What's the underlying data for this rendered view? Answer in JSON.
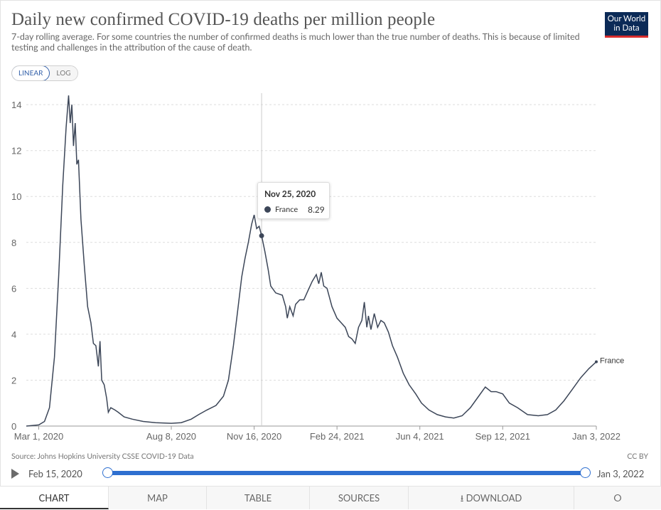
{
  "header": {
    "title": "Daily new confirmed COVID-19 deaths per million people",
    "subtitle": "7-day rolling average. For some countries the number of confirmed deaths is much lower than the true number of deaths. This is because of limited testing and challenges in the attribution of the cause of death.",
    "logo_line1": "Our World",
    "logo_line2": "in Data"
  },
  "scale_toggle": {
    "linear": "LINEAR",
    "log": "LOG",
    "selected": "LINEAR"
  },
  "tooltip": {
    "date": "Nov 25, 2020",
    "series": "France",
    "value": "8.29"
  },
  "footer": {
    "source": "Source: Johns Hopkins University CSSE COVID-19 Data",
    "license": "CC BY"
  },
  "timeline": {
    "start": "Feb 15, 2020",
    "end": "Jan 3, 2022"
  },
  "tabs": [
    {
      "label": "CHART",
      "active": true
    },
    {
      "label": "MAP"
    },
    {
      "label": "TABLE"
    },
    {
      "label": "SOURCES"
    },
    {
      "label": "DOWNLOAD",
      "icon": "download-icon"
    },
    {
      "label": "",
      "icon": "share-icon"
    }
  ],
  "colors": {
    "series": "#3c4658",
    "accent": "#2e6fd0",
    "logo_bg": "#0b2a57",
    "logo_bar": "#d72c2c"
  },
  "chart_data": {
    "type": "line",
    "ylim": [
      0,
      14.5
    ],
    "y_ticks": [
      0,
      2,
      4,
      6,
      8,
      10,
      12,
      14
    ],
    "x_tick_labels": [
      "Mar 1, 2020",
      "Aug 8, 2020",
      "Nov 16, 2020",
      "Feb 24, 2021",
      "Jun 4, 2021",
      "Sep 12, 2021",
      "Jan 3, 2022"
    ],
    "x_ticks": [
      "2020-03-01",
      "2020-08-08",
      "2020-11-16",
      "2021-02-24",
      "2021-06-04",
      "2021-09-12",
      "2022-01-03"
    ],
    "x_range": [
      "2020-02-15",
      "2022-01-03"
    ],
    "highlight_date": "2020-11-25",
    "series": [
      {
        "name": "France",
        "points": [
          [
            "2020-02-15",
            0
          ],
          [
            "2020-03-01",
            0.05
          ],
          [
            "2020-03-08",
            0.2
          ],
          [
            "2020-03-14",
            0.8
          ],
          [
            "2020-03-20",
            3.0
          ],
          [
            "2020-03-25",
            6.5
          ],
          [
            "2020-03-30",
            10.5
          ],
          [
            "2020-04-03",
            13.0
          ],
          [
            "2020-04-06",
            14.4
          ],
          [
            "2020-04-08",
            13.2
          ],
          [
            "2020-04-10",
            14.0
          ],
          [
            "2020-04-12",
            12.2
          ],
          [
            "2020-04-14",
            13.2
          ],
          [
            "2020-04-16",
            11.4
          ],
          [
            "2020-04-18",
            11.6
          ],
          [
            "2020-04-21",
            9.0
          ],
          [
            "2020-04-25",
            7.0
          ],
          [
            "2020-04-29",
            5.2
          ],
          [
            "2020-05-03",
            4.5
          ],
          [
            "2020-05-06",
            3.6
          ],
          [
            "2020-05-09",
            3.5
          ],
          [
            "2020-05-12",
            2.6
          ],
          [
            "2020-05-14",
            3.7
          ],
          [
            "2020-05-16",
            2.0
          ],
          [
            "2020-05-19",
            1.8
          ],
          [
            "2020-05-22",
            1.2
          ],
          [
            "2020-05-24",
            0.6
          ],
          [
            "2020-05-27",
            0.8
          ],
          [
            "2020-06-01",
            0.7
          ],
          [
            "2020-06-05",
            0.6
          ],
          [
            "2020-06-12",
            0.4
          ],
          [
            "2020-06-22",
            0.3
          ],
          [
            "2020-07-05",
            0.2
          ],
          [
            "2020-07-20",
            0.15
          ],
          [
            "2020-08-08",
            0.12
          ],
          [
            "2020-08-20",
            0.15
          ],
          [
            "2020-09-01",
            0.3
          ],
          [
            "2020-09-10",
            0.5
          ],
          [
            "2020-09-20",
            0.7
          ],
          [
            "2020-10-01",
            0.9
          ],
          [
            "2020-10-10",
            1.3
          ],
          [
            "2020-10-16",
            2.0
          ],
          [
            "2020-10-22",
            3.5
          ],
          [
            "2020-10-27",
            5.0
          ],
          [
            "2020-11-01",
            6.5
          ],
          [
            "2020-11-05",
            7.3
          ],
          [
            "2020-11-09",
            8.0
          ],
          [
            "2020-11-13",
            8.8
          ],
          [
            "2020-11-16",
            9.2
          ],
          [
            "2020-11-19",
            8.6
          ],
          [
            "2020-11-22",
            8.7
          ],
          [
            "2020-11-25",
            8.29
          ],
          [
            "2020-11-29",
            7.6
          ],
          [
            "2020-12-03",
            6.8
          ],
          [
            "2020-12-06",
            6.1
          ],
          [
            "2020-12-12",
            5.8
          ],
          [
            "2020-12-20",
            5.7
          ],
          [
            "2020-12-24",
            5.2
          ],
          [
            "2020-12-26",
            4.7
          ],
          [
            "2020-12-29",
            5.2
          ],
          [
            "2021-01-02",
            4.8
          ],
          [
            "2021-01-05",
            5.3
          ],
          [
            "2021-01-10",
            5.5
          ],
          [
            "2021-01-15",
            5.5
          ],
          [
            "2021-01-20",
            5.9
          ],
          [
            "2021-01-25",
            6.3
          ],
          [
            "2021-01-30",
            6.6
          ],
          [
            "2021-02-02",
            6.2
          ],
          [
            "2021-02-05",
            6.7
          ],
          [
            "2021-02-08",
            6.1
          ],
          [
            "2021-02-12",
            6.0
          ],
          [
            "2021-02-18",
            5.2
          ],
          [
            "2021-02-24",
            4.7
          ],
          [
            "2021-03-01",
            4.5
          ],
          [
            "2021-03-06",
            4.3
          ],
          [
            "2021-03-10",
            3.9
          ],
          [
            "2021-03-14",
            3.8
          ],
          [
            "2021-03-18",
            3.6
          ],
          [
            "2021-03-22",
            4.3
          ],
          [
            "2021-03-26",
            4.6
          ],
          [
            "2021-03-29",
            5.4
          ],
          [
            "2021-04-01",
            4.3
          ],
          [
            "2021-04-03",
            4.8
          ],
          [
            "2021-04-06",
            4.2
          ],
          [
            "2021-04-10",
            4.9
          ],
          [
            "2021-04-14",
            4.3
          ],
          [
            "2021-04-18",
            4.6
          ],
          [
            "2021-04-22",
            4.5
          ],
          [
            "2021-04-27",
            4.1
          ],
          [
            "2021-05-02",
            3.5
          ],
          [
            "2021-05-08",
            3.0
          ],
          [
            "2021-05-15",
            2.3
          ],
          [
            "2021-05-22",
            1.8
          ],
          [
            "2021-05-30",
            1.4
          ],
          [
            "2021-06-06",
            1.0
          ],
          [
            "2021-06-15",
            0.7
          ],
          [
            "2021-06-25",
            0.5
          ],
          [
            "2021-07-05",
            0.4
          ],
          [
            "2021-07-15",
            0.35
          ],
          [
            "2021-07-25",
            0.45
          ],
          [
            "2021-08-04",
            0.8
          ],
          [
            "2021-08-14",
            1.3
          ],
          [
            "2021-08-22",
            1.7
          ],
          [
            "2021-08-29",
            1.5
          ],
          [
            "2021-09-04",
            1.5
          ],
          [
            "2021-09-12",
            1.4
          ],
          [
            "2021-09-20",
            1.0
          ],
          [
            "2021-09-30",
            0.8
          ],
          [
            "2021-10-12",
            0.5
          ],
          [
            "2021-10-25",
            0.45
          ],
          [
            "2021-11-05",
            0.5
          ],
          [
            "2021-11-15",
            0.7
          ],
          [
            "2021-11-25",
            1.1
          ],
          [
            "2021-12-05",
            1.6
          ],
          [
            "2021-12-15",
            2.1
          ],
          [
            "2021-12-25",
            2.5
          ],
          [
            "2022-01-03",
            2.8
          ]
        ]
      }
    ]
  }
}
